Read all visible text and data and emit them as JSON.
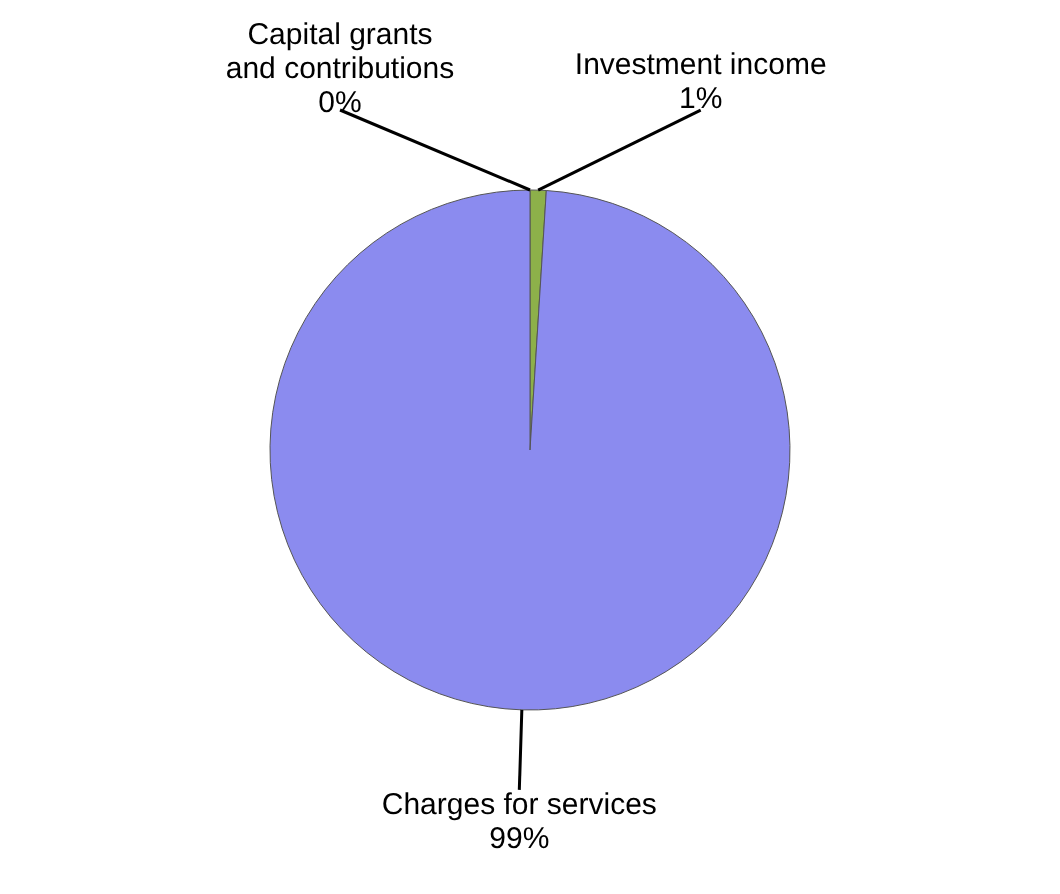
{
  "chart_data": {
    "type": "pie",
    "categories": [
      "Capital grants and contributions",
      "Investment income",
      "Charges for services"
    ],
    "values": [
      0,
      1,
      99
    ],
    "colors": [
      "#c0504d",
      "#8db04a",
      "#8b8bef"
    ],
    "value_labels": [
      "0%",
      "1%",
      "99%"
    ]
  }
}
